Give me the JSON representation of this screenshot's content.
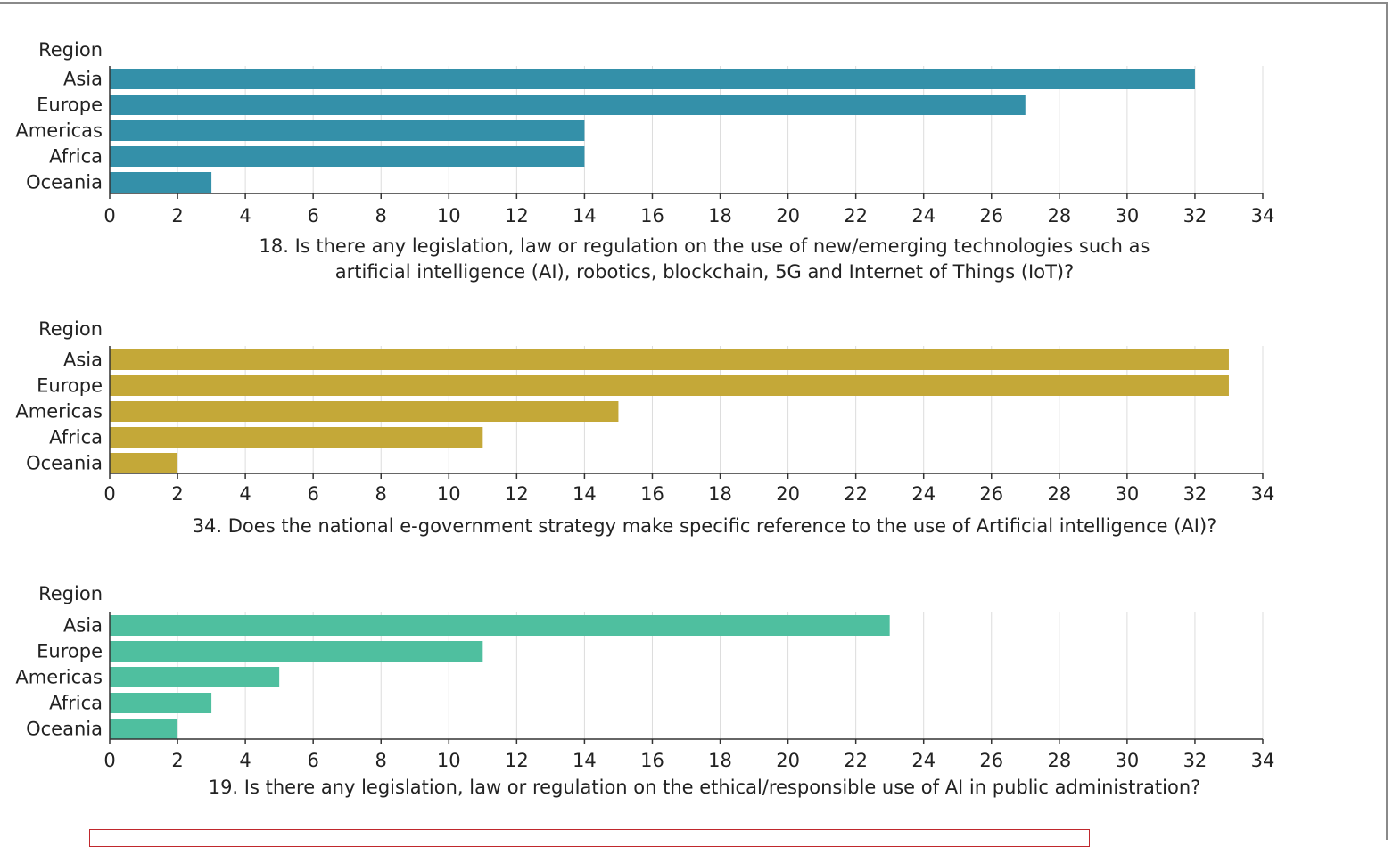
{
  "chart_data": [
    {
      "type": "bar",
      "orientation": "horizontal",
      "color": "#3490a9",
      "category_axis_title": "Region",
      "categories": [
        "Asia",
        "Europe",
        "Americas",
        "Africa",
        "Oceania"
      ],
      "values": [
        32,
        27,
        14,
        14,
        3
      ],
      "xlim": [
        0,
        34
      ],
      "xticks": [
        "0",
        "2",
        "4",
        "6",
        "8",
        "10",
        "12",
        "14",
        "16",
        "18",
        "20",
        "22",
        "24",
        "26",
        "28",
        "30",
        "32",
        "34"
      ],
      "grid": "vertical",
      "caption_lines": [
        "18. Is there any legislation, law or regulation on the use of new/emerging technologies such as",
        "artificial intelligence (AI), robotics, blockchain, 5G and Internet of Things (IoT)?"
      ]
    },
    {
      "type": "bar",
      "orientation": "horizontal",
      "color": "#c4a838",
      "category_axis_title": "Region",
      "categories": [
        "Asia",
        "Europe",
        "Americas",
        "Africa",
        "Oceania"
      ],
      "values": [
        33,
        33,
        15,
        11,
        2
      ],
      "xlim": [
        0,
        34
      ],
      "xticks": [
        "0",
        "2",
        "4",
        "6",
        "8",
        "10",
        "12",
        "14",
        "16",
        "18",
        "20",
        "22",
        "24",
        "26",
        "28",
        "30",
        "32",
        "34"
      ],
      "grid": "vertical",
      "caption_lines": [
        "34. Does the national e-government strategy make specific reference to the use of Artificial intelligence (AI)?"
      ]
    },
    {
      "type": "bar",
      "orientation": "horizontal",
      "color": "#4fbf9f",
      "category_axis_title": "Region",
      "categories": [
        "Asia",
        "Europe",
        "Americas",
        "Africa",
        "Oceania"
      ],
      "values": [
        23,
        11,
        5,
        3,
        2
      ],
      "xlim": [
        0,
        34
      ],
      "xticks": [
        "0",
        "2",
        "4",
        "6",
        "8",
        "10",
        "12",
        "14",
        "16",
        "18",
        "20",
        "22",
        "24",
        "26",
        "28",
        "30",
        "32",
        "34"
      ],
      "grid": "vertical",
      "caption_lines": [
        "19. Is there any legislation, law or regulation on the ethical/responsible use of AI in public administration?"
      ]
    }
  ],
  "colors": {
    "axis": "#333333",
    "grid": "#dcdcdc",
    "text": "#222222",
    "frame_border": "#8a8a8a",
    "highlight_box": "#c0282d"
  }
}
